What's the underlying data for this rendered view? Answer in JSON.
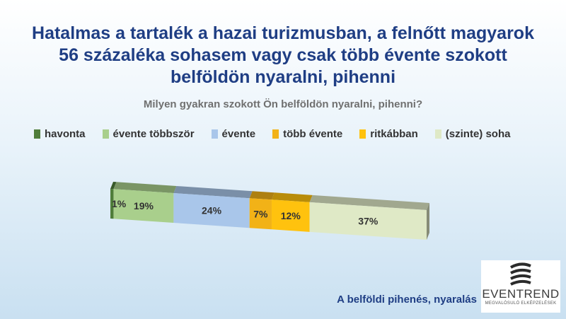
{
  "chart_data": {
    "type": "bar",
    "orientation": "horizontal-stacked-100",
    "title": "Hatalmas a tartalék a hazai turizmusban, a felnőtt magyarok 56 százaléka sohasem vagy csak több évente szokott belföldön nyaralni, pihenni",
    "subtitle": "Milyen gyakran szokott Ön belföldön nyaralni, pihenni?",
    "legend_position": "top",
    "grid": false,
    "series": [
      {
        "name": "havonta",
        "value": 1,
        "label": "1%",
        "color": "#4f7d3a"
      },
      {
        "name": "évente többször",
        "value": 19,
        "label": "19%",
        "color": "#a9cf8c"
      },
      {
        "name": "évente",
        "value": 24,
        "label": "24%",
        "color": "#a9c6ea"
      },
      {
        "name": "több évente",
        "value": 7,
        "label": "7%",
        "color": "#f2b217"
      },
      {
        "name": "ritkábban",
        "value": 12,
        "label": "12%",
        "color": "#ffc20e"
      },
      {
        "name": "(szinte) soha",
        "value": 37,
        "label": "37%",
        "color": "#dfe9c6"
      }
    ]
  },
  "footer": {
    "caption": "A belföldi pihenés, nyaralás"
  },
  "logo": {
    "name": "EVENTREND",
    "tagline": "MEGVALÓSULÓ ELKÉPZELÉSEK"
  }
}
